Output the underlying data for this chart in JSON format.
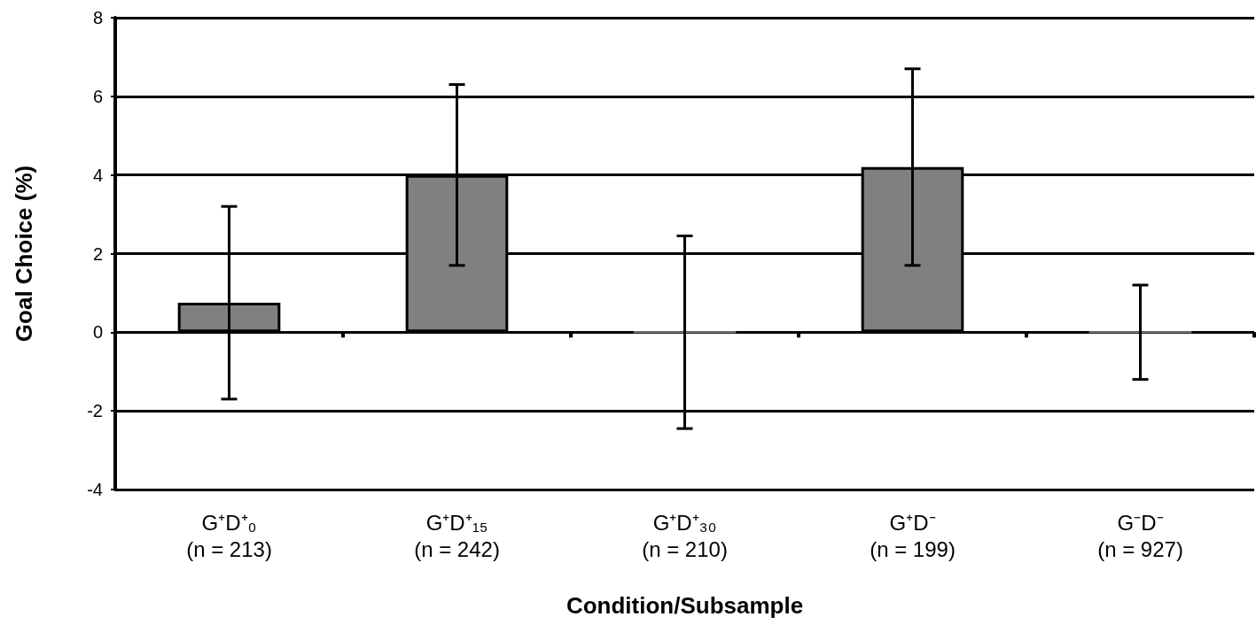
{
  "chart_data": {
    "type": "bar",
    "xlabel": "Condition/Subsample",
    "ylabel": "Goal Choice (%)",
    "categories": [
      "G⁺D⁺₀\n(n = 213)",
      "G⁺D⁺₁₅\n(n = 242)",
      "G⁺D⁺₃₀\n(n = 210)",
      "G⁺D⁻\n(n = 199)",
      "G⁻D⁻\n(n = 927)"
    ],
    "values": [
      0.75,
      4.0,
      0.0,
      4.2,
      0.0
    ],
    "errors": [
      [
        -1.7,
        3.2
      ],
      [
        1.7,
        6.3
      ],
      [
        -2.45,
        2.45
      ],
      [
        1.7,
        6.7
      ],
      [
        -1.2,
        1.2
      ]
    ],
    "color": "#808080",
    "ylim": [
      -4,
      8
    ],
    "yticks": [
      -4,
      -2,
      0,
      2,
      4,
      6,
      8
    ],
    "grid": "y"
  }
}
